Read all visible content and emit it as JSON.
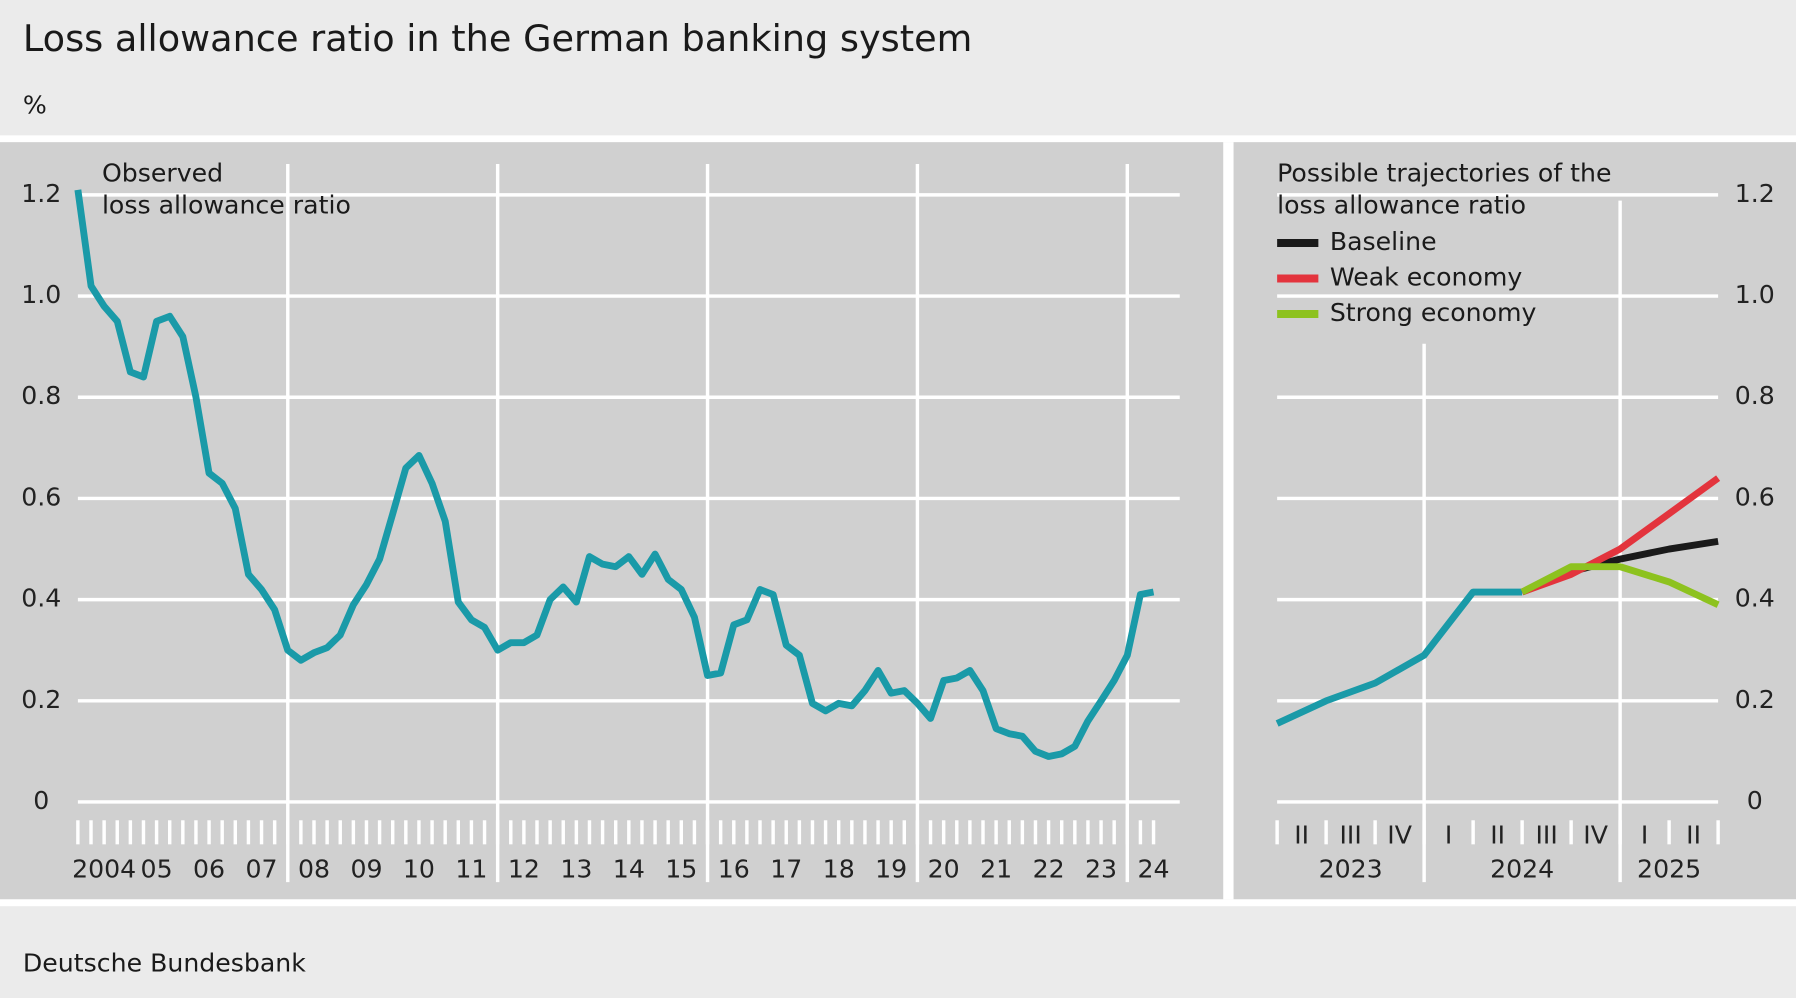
{
  "header": {
    "title": "Loss allowance ratio in the German banking system",
    "unit": "%"
  },
  "footer": {
    "source": "Deutsche Bundesbank"
  },
  "chart_data": [
    {
      "type": "line",
      "annotation": [
        "Observed",
        "loss allowance ratio"
      ],
      "series": [
        {
          "color": "#1a9aa8",
          "x": [
            2004,
            2004.25,
            2004.5,
            2004.75,
            2005,
            2005.25,
            2005.5,
            2005.75,
            2006,
            2006.25,
            2006.5,
            2006.75,
            2007,
            2007.25,
            2007.5,
            2007.75,
            2008,
            2008.25,
            2008.5,
            2008.75,
            2009,
            2009.25,
            2009.5,
            2009.75,
            2010,
            2010.25,
            2010.5,
            2010.75,
            2011,
            2011.25,
            2011.5,
            2011.75,
            2012,
            2012.25,
            2012.5,
            2012.75,
            2013,
            2013.25,
            2013.5,
            2013.75,
            2014,
            2014.25,
            2014.5,
            2014.75,
            2015,
            2015.25,
            2015.5,
            2015.75,
            2016,
            2016.25,
            2016.5,
            2016.75,
            2017,
            2017.25,
            2017.5,
            2017.75,
            2018,
            2018.25,
            2018.5,
            2018.75,
            2019,
            2019.25,
            2019.5,
            2019.75,
            2020,
            2020.25,
            2020.5,
            2020.75,
            2021,
            2021.25,
            2021.5,
            2021.75,
            2022,
            2022.25,
            2022.5,
            2022.75,
            2023,
            2023.25,
            2023.5,
            2023.75,
            2024,
            2024.25,
            2024.5
          ],
          "values": [
            1.21,
            1.02,
            0.98,
            0.95,
            0.85,
            0.84,
            0.95,
            0.96,
            0.92,
            0.8,
            0.65,
            0.63,
            0.58,
            0.45,
            0.42,
            0.38,
            0.3,
            0.28,
            0.295,
            0.305,
            0.33,
            0.39,
            0.43,
            0.48,
            0.57,
            0.66,
            0.685,
            0.63,
            0.555,
            0.395,
            0.36,
            0.345,
            0.3,
            0.315,
            0.315,
            0.33,
            0.4,
            0.425,
            0.395,
            0.485,
            0.47,
            0.465,
            0.485,
            0.45,
            0.49,
            0.44,
            0.42,
            0.365,
            0.25,
            0.255,
            0.35,
            0.36,
            0.42,
            0.41,
            0.31,
            0.29,
            0.195,
            0.18,
            0.195,
            0.19,
            0.22,
            0.26,
            0.215,
            0.22,
            0.195,
            0.165,
            0.24,
            0.245,
            0.26,
            0.22,
            0.145,
            0.135,
            0.13,
            0.1,
            0.09,
            0.095,
            0.11,
            0.16,
            0.2,
            0.24,
            0.29,
            0.41,
            0.415
          ]
        }
      ],
      "xlim": [
        2004,
        2025
      ],
      "xticks": [
        2004,
        {
          "value": 2005,
          "label": "05"
        },
        {
          "value": 2006,
          "label": "06"
        },
        {
          "value": 2007,
          "label": "07"
        },
        {
          "value": 2008,
          "label": "08"
        },
        {
          "value": 2009,
          "label": "09"
        },
        {
          "value": 2010,
          "label": "10"
        },
        {
          "value": 2011,
          "label": "11"
        },
        {
          "value": 2012,
          "label": "12"
        },
        {
          "value": 2013,
          "label": "13"
        },
        {
          "value": 2014,
          "label": "14"
        },
        {
          "value": 2015,
          "label": "15"
        },
        {
          "value": 2016,
          "label": "16"
        },
        {
          "value": 2017,
          "label": "17"
        },
        {
          "value": 2018,
          "label": "18"
        },
        {
          "value": 2019,
          "label": "19"
        },
        {
          "value": 2020,
          "label": "20"
        },
        {
          "value": 2021,
          "label": "21"
        },
        {
          "value": 2022,
          "label": "22"
        },
        {
          "value": 2023,
          "label": "23"
        },
        {
          "value": 2024,
          "label": "24"
        }
      ],
      "ylim": [
        0,
        1.2
      ],
      "yticks": [
        0,
        0.2,
        0.4,
        0.6,
        0.8,
        {
          "value": 1,
          "label": "1.0"
        },
        1.2
      ],
      "grid": true
    },
    {
      "type": "line",
      "legend_title": [
        "Possible trajectories of the",
        "loss allowance ratio"
      ],
      "legend": "top-left",
      "series": [
        {
          "color": "#1a9aa8",
          "x": [
            2023.25,
            2023.5,
            2023.75,
            2024,
            2024.25,
            2024.5
          ],
          "values": [
            0.155,
            0.2,
            0.235,
            0.29,
            0.415,
            0.415
          ]
        },
        {
          "name": "Baseline",
          "color": "#1a1a1a",
          "x": [
            2024.5,
            2024.75,
            2025,
            2025.25,
            2025.5
          ],
          "values": [
            0.415,
            0.455,
            0.48,
            0.5,
            0.515
          ]
        },
        {
          "name": "Weak economy",
          "color": "#e3343d",
          "x": [
            2024.5,
            2024.75,
            2025,
            2025.25,
            2025.5
          ],
          "values": [
            0.415,
            0.45,
            0.5,
            0.57,
            0.64
          ]
        },
        {
          "name": "Strong economy",
          "color": "#8dc21f",
          "x": [
            2024.5,
            2024.75,
            2025,
            2025.25,
            2025.5
          ],
          "values": [
            0.415,
            0.465,
            0.465,
            0.435,
            0.39
          ]
        }
      ],
      "xlim": [
        2023.25,
        2025.5
      ],
      "xticks": [
        2023,
        2024,
        2025
      ],
      "quarter_ticks": [
        {
          "value": 2023.25,
          "label": "II"
        },
        {
          "value": 2023.5,
          "label": "III"
        },
        {
          "value": 2023.75,
          "label": "IV"
        },
        {
          "value": 2024,
          "label": "I"
        },
        {
          "value": 2024.25,
          "label": "II"
        },
        {
          "value": 2024.5,
          "label": "III"
        },
        {
          "value": 2024.75,
          "label": "IV"
        },
        {
          "value": 2025,
          "label": "I"
        },
        {
          "value": 2025.25,
          "label": "II"
        }
      ],
      "ylim": [
        0,
        1.2
      ],
      "yticks": [
        0,
        0.2,
        0.4,
        0.6,
        0.8,
        {
          "value": 1,
          "label": "1.0"
        },
        1.2
      ],
      "grid": true
    }
  ]
}
